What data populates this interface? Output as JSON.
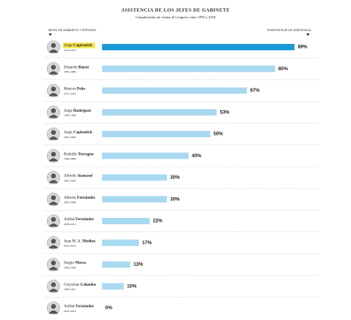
{
  "chart_data": {
    "type": "bar",
    "title": "ASISTENCIA DE LOS JEFES DE GABINETE",
    "subtitle": "Cumplimiento de visitas al Congreso entre 1995 y 2018",
    "label_header": "JEFES DE GABINETE Y PERIODO",
    "value_header": "PORCENTAJE DE ASISTENCIA",
    "first_names": [
      "Jorge",
      "Eduardo",
      "Marcos",
      "Jorge",
      "Jorge",
      "Rodolfo",
      "Alfredo",
      "Alberto",
      "Aníbal",
      "Juan M. A.",
      "Sergio",
      "Chrystian",
      "Aníbal"
    ],
    "categories": [
      "Capitanich",
      "Bauzá",
      "Peña",
      "Rodríguez",
      "Capitanich",
      "Terragno",
      "Atanasof",
      "Fernández",
      "Fernández",
      "Medina",
      "Massa",
      "Colombo",
      "Fernández"
    ],
    "periods": [
      "2014-2015",
      "1995-1996",
      "2015-2018",
      "1996-1999",
      "2002-2002",
      "1999-2000",
      "2002-2002",
      "2003-2008",
      "2009-2011",
      "2011-2013",
      "2008-2009",
      "2000-2001",
      "2015-2015"
    ],
    "values": [
      89,
      80,
      67,
      53,
      50,
      40,
      30,
      30,
      22,
      17,
      13,
      10,
      0
    ],
    "value_labels": [
      "89%",
      "80%",
      "67%",
      "53%",
      "50%",
      "40%",
      "30%",
      "30%",
      "22%",
      "17%",
      "13%",
      "10%",
      "0%"
    ],
    "xlim": [
      0,
      100
    ],
    "color": "#a8d9f1",
    "highlight": 0,
    "highlight_color": "#1a9bd7",
    "highlight_name_color": "#f7e64a"
  }
}
